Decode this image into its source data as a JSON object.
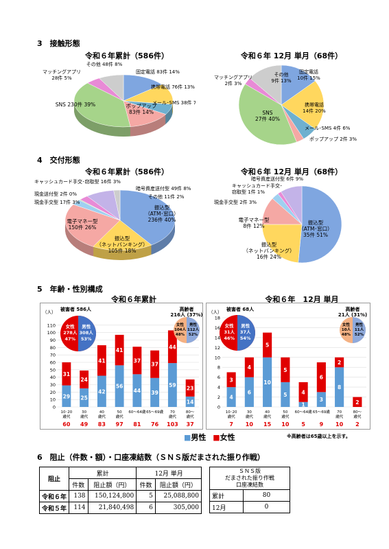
{
  "s3": {
    "heading": "3　接触形態",
    "left_title": "令和６年累計（586件）",
    "right_title": "令和６年 12月 単月（68件）",
    "left": [
      {
        "n": "固定電話",
        "t": "83件 14%",
        "v": 83,
        "c": "#7fa6e0"
      },
      {
        "n": "携帯電話",
        "t": "76件 13%",
        "v": 76,
        "c": "#ffd75e"
      },
      {
        "n": "メール･SMS",
        "t": "38件 7%",
        "v": 38,
        "c": "#6fb0cf"
      },
      {
        "n": "ポップアップ",
        "t": "83件 14%",
        "v": 83,
        "c": "#f5a8a4"
      },
      {
        "n": "SNS",
        "t": "230件 39%",
        "v": 230,
        "c": "#a6d48a"
      },
      {
        "n": "マッチングアプリ",
        "t": "28件 5%",
        "v": 28,
        "c": "#e88ad6"
      },
      {
        "n": "その他",
        "t": "48件 8%",
        "v": 48,
        "c": "#cdcdcd"
      }
    ],
    "right": [
      {
        "n": "固定電話",
        "t": "10件 15%",
        "v": 10,
        "c": "#7fa6e0"
      },
      {
        "n": "携帯電話",
        "t": "14件 20%",
        "v": 14,
        "c": "#ffd75e"
      },
      {
        "n": "メール･SMS",
        "t": "4件 6%",
        "v": 4,
        "c": "#6fb0cf"
      },
      {
        "n": "ポップアップ",
        "t": "2件 3%",
        "v": 2,
        "c": "#f5a8a4"
      },
      {
        "n": "SNS",
        "t": "27件 40%",
        "v": 27,
        "c": "#a6d48a"
      },
      {
        "n": "マッチングアプリ",
        "t": "2件 3%",
        "v": 2,
        "c": "#e88ad6"
      },
      {
        "n": "その他",
        "t": "9件 13%",
        "v": 9,
        "c": "#cdcdcd"
      }
    ]
  },
  "s4": {
    "heading": "4　交付形態",
    "left_title": "令和６年累計（586件）",
    "right_title": "令和６年 12月 単月（68件）",
    "left": [
      {
        "n": "振込型（ATM･窓口）",
        "t": "236件 40%",
        "v": 236,
        "c": "#7fa6e0"
      },
      {
        "n": "振込型（ネットバンキング）",
        "t": "105件 18%",
        "v": 105,
        "c": "#ffd75e"
      },
      {
        "n": "電子マネー型",
        "t": "150件 26%",
        "v": 150,
        "c": "#f5a8a4"
      },
      {
        "n": "現金手交型",
        "t": "17件 3%",
        "v": 17,
        "c": "#9fd0f0"
      },
      {
        "n": "現金送付型",
        "t": "2件 0%",
        "v": 2,
        "c": "#a6d48a"
      },
      {
        "n": "キャッシュカード手交･窃取型",
        "t": "16件 3%",
        "v": 16,
        "c": "#e88ad6"
      },
      {
        "n": "暗号資産送付型",
        "t": "49件 8%",
        "v": 49,
        "c": "#c3b3e8"
      },
      {
        "n": "その他",
        "t": "11件 2%",
        "v": 11,
        "c": "#cdcdcd"
      }
    ],
    "right": [
      {
        "n": "振込型（ATM･窓口）",
        "t": "35件 51%",
        "v": 35,
        "c": "#7fa6e0"
      },
      {
        "n": "振込型（ネットバンキング）",
        "t": "16件 24%",
        "v": 16,
        "c": "#ffd75e"
      },
      {
        "n": "電子マネー型",
        "t": "8件 12%",
        "v": 8,
        "c": "#f5a8a4"
      },
      {
        "n": "現金手交型",
        "t": "2件 3%",
        "v": 2,
        "c": "#9fd0f0"
      },
      {
        "n": "キャッシュカード手交･窃取型",
        "t": "1件 1%",
        "v": 1,
        "c": "#e88ad6"
      },
      {
        "n": "暗号資産送付型",
        "t": "6件 9%",
        "v": 6,
        "c": "#c3b3e8"
      }
    ]
  },
  "s5": {
    "heading": "5　年齢・性別構成",
    "left_title": "令和６年累計",
    "right_title": "令和６年　12月 単月",
    "unit": "（人）",
    "left_victims": "被害者 586人",
    "right_victims": "被害者 68人",
    "left_elderly": "高齢者",
    "left_elderly_n": "216人 (37%)",
    "right_elderly": "高齢者",
    "right_elderly_n": "21人 (31%)",
    "left_female": [
      "女性",
      "278人",
      "47%"
    ],
    "left_male": [
      "男性",
      "308人",
      "53%"
    ],
    "right_female": [
      "女性",
      "31人",
      "46%"
    ],
    "right_male": [
      "男性",
      "37人",
      "54%"
    ],
    "left_el_f": [
      "女性",
      "104人",
      "48%"
    ],
    "left_el_m": [
      "男性",
      "112人",
      "52%"
    ],
    "right_el_f": [
      "女性",
      "10人",
      "48%"
    ],
    "right_el_m": [
      "男性",
      "11人",
      "52%"
    ],
    "legend_male": "男性",
    "legend_female": "女性",
    "note": "※高齢者は65歳以上を示す。"
  },
  "chart_data": [
    {
      "type": "pie",
      "title": "令和６年累計（586件）",
      "labels": [
        "固定電話",
        "携帯電話",
        "メール･SMS",
        "ポップアップ",
        "SNS",
        "マッチングアプリ",
        "その他"
      ],
      "values": [
        83,
        76,
        38,
        83,
        230,
        28,
        48
      ]
    },
    {
      "type": "pie",
      "title": "令和６年 12月 単月（68件）",
      "labels": [
        "固定電話",
        "携帯電話",
        "メール･SMS",
        "ポップアップ",
        "SNS",
        "マッチングアプリ",
        "その他"
      ],
      "values": [
        10,
        14,
        4,
        2,
        27,
        2,
        9
      ]
    },
    {
      "type": "pie",
      "title": "令和６年累計（586件）",
      "labels": [
        "振込型（ATM･窓口）",
        "振込型（ネットバンキング）",
        "電子マネー型",
        "現金手交型",
        "現金送付型",
        "キャッシュカード手交･窃取型",
        "暗号資産送付型",
        "その他"
      ],
      "values": [
        236,
        105,
        150,
        17,
        2,
        16,
        49,
        11
      ]
    },
    {
      "type": "pie",
      "title": "令和６年 12月 単月（68件）",
      "labels": [
        "振込型（ATM･窓口）",
        "振込型（ネットバンキング）",
        "電子マネー型",
        "現金手交型",
        "キャッシュカード手交･窃取型",
        "暗号資産送付型"
      ],
      "values": [
        35,
        16,
        8,
        2,
        1,
        6
      ]
    },
    {
      "type": "bar",
      "title": "令和６年累計",
      "categories": [
        "10･20歳代",
        "30歳代",
        "40歳代",
        "50歳代",
        "60～64歳",
        "65～69歳",
        "70歳代",
        "80～歳代"
      ],
      "series": [
        {
          "name": "男性",
          "values": [
            29,
            25,
            42,
            56,
            44,
            39,
            59,
            14
          ]
        },
        {
          "name": "女性",
          "values": [
            31,
            24,
            41,
            41,
            37,
            37,
            44,
            23
          ]
        }
      ],
      "totals": [
        60,
        49,
        83,
        97,
        81,
        76,
        103,
        37
      ],
      "ylim": [
        0,
        120
      ],
      "yticks": [
        0,
        10,
        20,
        30,
        40,
        50,
        60,
        70,
        80,
        90,
        100,
        110
      ]
    },
    {
      "type": "bar",
      "title": "令和６年　12月 単月",
      "categories": [
        "10･20歳代",
        "30歳代",
        "40歳代",
        "50歳代",
        "60～64歳",
        "65～69歳",
        "70歳代",
        "80～歳代"
      ],
      "series": [
        {
          "name": "男性",
          "values": [
            4,
            6,
            10,
            5,
            1,
            3,
            8,
            0
          ]
        },
        {
          "name": "女性",
          "values": [
            3,
            4,
            5,
            5,
            4,
            6,
            2,
            2
          ]
        }
      ],
      "totals": [
        7,
        10,
        15,
        10,
        5,
        9,
        10,
        2
      ],
      "ylim": [
        0,
        18
      ],
      "yticks": [
        0,
        2,
        4,
        6,
        8,
        10,
        12,
        14,
        16,
        18
      ]
    }
  ],
  "s6": {
    "heading": "6　阻止（件数・額）・口座凍結数（ＳＮＳ版だまされた振り作戦）",
    "t1": {
      "corner": "阻止",
      "h1": "累計",
      "h2": "12月 単月",
      "sub": [
        "件数",
        "阻止額（円）",
        "件数",
        "阻止額（円）"
      ],
      "rows": [
        {
          "label": "令和６年",
          "c1": "138",
          "a1": "150,124,800",
          "c2": "5",
          "a2": "25,088,800"
        },
        {
          "label": "令和５年",
          "c1": "114",
          "a1": "21,840,498",
          "c2": "6",
          "a2": "305,000"
        }
      ]
    },
    "t2": {
      "head": [
        "ＳＮＳ版",
        "だまされた振り作戦",
        "口座凍結数"
      ],
      "rows": [
        {
          "label": "累計",
          "v": "80"
        },
        {
          "label": "12月",
          "v": "0"
        }
      ]
    }
  }
}
